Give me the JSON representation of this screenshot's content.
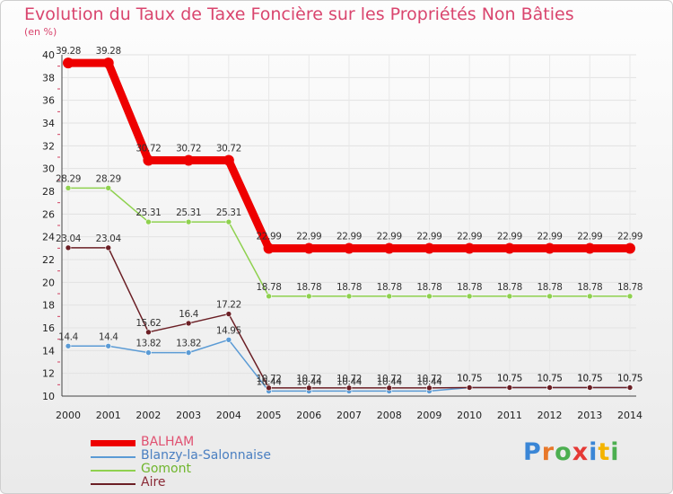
{
  "chart_data": {
    "type": "line",
    "title": "Evolution du Taux de Taxe Foncière sur les Propriétés Non Bâties",
    "ylabel": "(en %)",
    "xlabel": "",
    "ylim": [
      10,
      40
    ],
    "yticks": [
      "10",
      "12",
      "14",
      "16",
      "18",
      "20",
      "22",
      "24",
      "26",
      "28",
      "30",
      "32",
      "34",
      "36",
      "38",
      "40"
    ],
    "x": [
      "2000",
      "2001",
      "2002",
      "2003",
      "2004",
      "2005",
      "2006",
      "2007",
      "2008",
      "2009",
      "2010",
      "2011",
      "2012",
      "2013",
      "2014"
    ],
    "grid": true,
    "legend_position": "bottom-left",
    "series": [
      {
        "name": "BALHAM",
        "color": "#ee0000",
        "values": [
          39.28,
          39.28,
          30.72,
          30.72,
          30.72,
          22.99,
          22.99,
          22.99,
          22.99,
          22.99,
          22.99,
          22.99,
          22.99,
          22.99,
          22.99
        ],
        "labels": [
          "39.28",
          "39.28",
          "30.72",
          "30.72",
          "30.72",
          "22.99",
          "22.99",
          "22.99",
          "22.99",
          "22.99",
          "22.99",
          "22.99",
          "22.99",
          "22.99",
          "22.99"
        ]
      },
      {
        "name": "Blanzy-la-Salonnaise",
        "color": "#5b9bd5",
        "values": [
          14.4,
          14.4,
          13.82,
          13.82,
          14.95,
          10.44,
          10.44,
          10.44,
          10.44,
          10.44,
          10.75,
          10.75,
          10.75,
          10.75,
          10.75
        ],
        "labels": [
          "14.4",
          "14.4",
          "13.82",
          "13.82",
          "14.95",
          "10.44",
          "10.44",
          "10.44",
          "10.44",
          "10.44",
          "10.75",
          "10.75",
          "10.75",
          "10.75",
          "10.75"
        ]
      },
      {
        "name": "Gomont",
        "color": "#8fd14f",
        "values": [
          28.29,
          28.29,
          25.31,
          25.31,
          25.31,
          18.78,
          18.78,
          18.78,
          18.78,
          18.78,
          18.78,
          18.78,
          18.78,
          18.78,
          18.78
        ],
        "labels": [
          "28.29",
          "28.29",
          "25.31",
          "25.31",
          "25.31",
          "18.78",
          "18.78",
          "18.78",
          "18.78",
          "18.78",
          "18.78",
          "18.78",
          "18.78",
          "18.78",
          "18.78"
        ]
      },
      {
        "name": "Aire",
        "color": "#6b1f25",
        "values": [
          23.04,
          23.04,
          15.62,
          16.4,
          17.22,
          10.72,
          10.72,
          10.72,
          10.72,
          10.72,
          10.75,
          10.75,
          10.75,
          10.75,
          10.75
        ],
        "labels": [
          "23.04",
          "23.04",
          "15.62",
          "16.4",
          "17.22",
          "10.72",
          "10.72",
          "10.72",
          "10.72",
          "10.72",
          "10.75",
          "10.75",
          "10.75",
          "10.75",
          "10.75"
        ]
      }
    ]
  },
  "legend": {
    "items": [
      {
        "name": "BALHAM",
        "color": "#ee0000",
        "text_color": "#e05070"
      },
      {
        "name": "Blanzy-la-Salonnaise",
        "color": "#5b9bd5",
        "text_color": "#4a7fc1"
      },
      {
        "name": "Gomont",
        "color": "#8fd14f",
        "text_color": "#6fb52c"
      },
      {
        "name": "Aire",
        "color": "#6b1f25",
        "text_color": "#8a2a36"
      }
    ]
  },
  "logo": {
    "letters": [
      "P",
      "r",
      "o",
      "x",
      "i",
      "t",
      "i"
    ],
    "colors": [
      "#3a86d6",
      "#e8782a",
      "#4caf50",
      "#e53935",
      "#3a86d6",
      "#f4b400",
      "#4caf50"
    ]
  }
}
